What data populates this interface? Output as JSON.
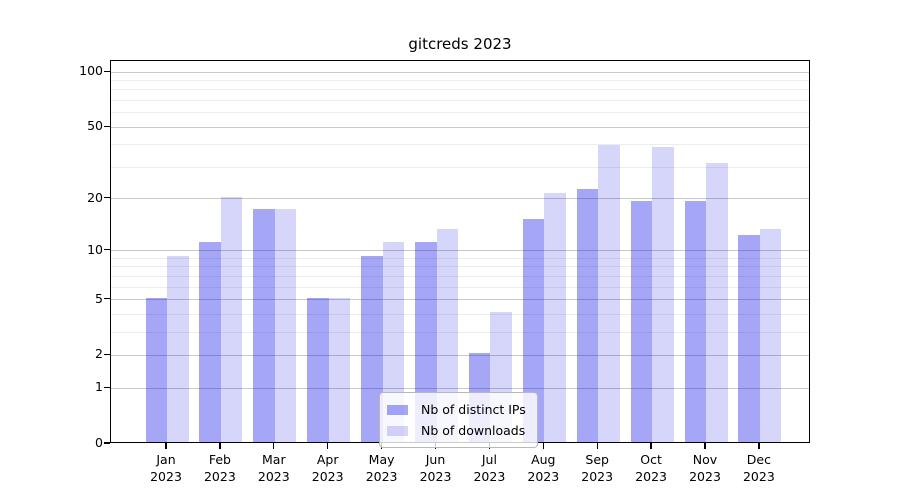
{
  "chart_data": {
    "type": "bar",
    "title": "gitcreds 2023",
    "categories": [
      "Jan 2023",
      "Feb 2023",
      "Mar 2023",
      "Apr 2023",
      "May 2023",
      "Jun 2023",
      "Jul 2023",
      "Aug 2023",
      "Sep 2023",
      "Oct 2023",
      "Nov 2023",
      "Dec 2023"
    ],
    "x_tick_months": [
      "Jan",
      "Feb",
      "Mar",
      "Apr",
      "May",
      "Jun",
      "Jul",
      "Aug",
      "Sep",
      "Oct",
      "Nov",
      "Dec"
    ],
    "x_tick_year": "2023",
    "series": [
      {
        "name": "Nb of distinct IPs",
        "color": "rgba(0,0,230,0.35)",
        "values": [
          5,
          11,
          17,
          5,
          9,
          11,
          2,
          15,
          22,
          19,
          19,
          12
        ]
      },
      {
        "name": "Nb of downloads",
        "color": "rgba(0,0,230,0.16)",
        "values": [
          9,
          20,
          17,
          5,
          11,
          13,
          4,
          21,
          39,
          38,
          31,
          13
        ]
      }
    ],
    "xlabel": "",
    "ylabel": "",
    "y_scale": "log1p",
    "ylim": [
      0,
      115
    ],
    "y_major_ticks": [
      0,
      1,
      2,
      5,
      10,
      20,
      50,
      100
    ],
    "y_minor_ticks": [
      3,
      4,
      6,
      7,
      8,
      9,
      30,
      40,
      60,
      70,
      80,
      90
    ],
    "grid": "horizontal major+minor, visible through semi-transparent bars",
    "legend_position": "bottom-center"
  },
  "colors": {
    "bar_distinct_ips_effective": "#a6a6f6",
    "bar_downloads_effective": "#dadaf9",
    "gridline_major": "#c9c9c9",
    "gridline_minor": "#ededed",
    "axis": "#000000"
  }
}
